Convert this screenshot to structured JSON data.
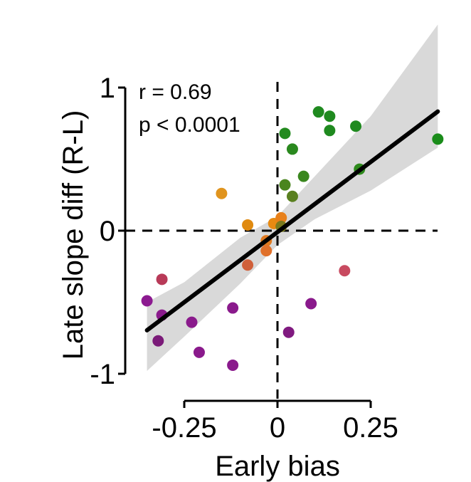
{
  "chart_data": {
    "type": "scatter",
    "title": "",
    "xlabel": "Early bias",
    "ylabel": "Late slope diff (R-L)",
    "xlim": [
      -0.35,
      0.43
    ],
    "ylim": [
      -1,
      1
    ],
    "xticks": [
      {
        "value": -0.25,
        "label": "-0.25"
      },
      {
        "value": 0,
        "label": "0"
      },
      {
        "value": 0.25,
        "label": "0.25"
      }
    ],
    "yticks": [
      {
        "value": 1,
        "label": "1"
      },
      {
        "value": 0,
        "label": "0"
      },
      {
        "value": -1,
        "label": "-1"
      }
    ],
    "annotations": [
      "r = 0.69",
      "p < 0.0001"
    ],
    "reference_lines": {
      "x": 0,
      "y": 0
    },
    "fit": {
      "slope": 1.96,
      "intercept": -0.01,
      "x_range": [
        -0.35,
        0.43
      ]
    },
    "ci_band": [
      {
        "x": -0.35,
        "lower": -0.98,
        "upper": -0.5
      },
      {
        "x": -0.25,
        "lower": -0.74,
        "upper": -0.36
      },
      {
        "x": -0.1,
        "lower": -0.37,
        "upper": -0.05
      },
      {
        "x": 0.0,
        "lower": -0.1,
        "upper": 0.1
      },
      {
        "x": 0.1,
        "lower": 0.08,
        "upper": 0.38
      },
      {
        "x": 0.25,
        "lower": 0.28,
        "upper": 0.8
      },
      {
        "x": 0.43,
        "lower": 0.58,
        "upper": 1.44
      }
    ],
    "points": [
      {
        "x": 0.43,
        "y": 0.64,
        "color": "#1a8c1a"
      },
      {
        "x": 0.11,
        "y": 0.83,
        "color": "#1f8a1f"
      },
      {
        "x": 0.14,
        "y": 0.8,
        "color": "#1f8a1f"
      },
      {
        "x": 0.14,
        "y": 0.7,
        "color": "#1f8a1f"
      },
      {
        "x": 0.21,
        "y": 0.73,
        "color": "#1f8a1f"
      },
      {
        "x": 0.22,
        "y": 0.43,
        "color": "#2e8a1c"
      },
      {
        "x": 0.02,
        "y": 0.68,
        "color": "#228a1e"
      },
      {
        "x": 0.04,
        "y": 0.57,
        "color": "#2a891e"
      },
      {
        "x": 0.07,
        "y": 0.38,
        "color": "#3a871e"
      },
      {
        "x": 0.02,
        "y": 0.32,
        "color": "#4a851e"
      },
      {
        "x": 0.04,
        "y": 0.24,
        "color": "#5a8020"
      },
      {
        "x": -0.15,
        "y": 0.26,
        "color": "#e0941e"
      },
      {
        "x": -0.08,
        "y": 0.04,
        "color": "#e08a10"
      },
      {
        "x": -0.01,
        "y": 0.05,
        "color": "#e88a12"
      },
      {
        "x": 0.01,
        "y": 0.09,
        "color": "#e8801a"
      },
      {
        "x": 0.01,
        "y": 0.03,
        "color": "#7a7a1e"
      },
      {
        "x": -0.03,
        "y": -0.07,
        "color": "#e07a20"
      },
      {
        "x": -0.03,
        "y": -0.14,
        "color": "#e0702a"
      },
      {
        "x": -0.08,
        "y": -0.24,
        "color": "#d0603a"
      },
      {
        "x": 0.18,
        "y": -0.28,
        "color": "#c84a60"
      },
      {
        "x": -0.31,
        "y": -0.34,
        "color": "#b83a58"
      },
      {
        "x": -0.35,
        "y": -0.49,
        "color": "#8c1a90"
      },
      {
        "x": -0.31,
        "y": -0.59,
        "color": "#8a1a8c"
      },
      {
        "x": -0.12,
        "y": -0.54,
        "color": "#8a1a8c"
      },
      {
        "x": 0.09,
        "y": -0.51,
        "color": "#8a1a8c"
      },
      {
        "x": -0.23,
        "y": -0.64,
        "color": "#8a1a8c"
      },
      {
        "x": 0.03,
        "y": -0.71,
        "color": "#801a80"
      },
      {
        "x": -0.32,
        "y": -0.77,
        "color": "#7a1a78"
      },
      {
        "x": -0.21,
        "y": -0.85,
        "color": "#8a1a8c"
      },
      {
        "x": -0.12,
        "y": -0.94,
        "color": "#8a1a8c"
      }
    ]
  }
}
